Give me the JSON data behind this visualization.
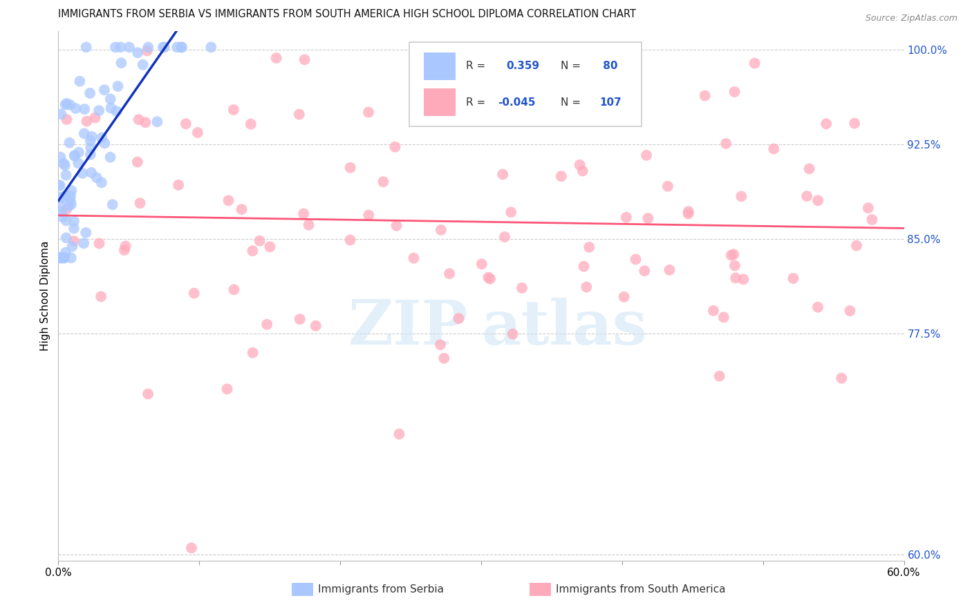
{
  "title": "IMMIGRANTS FROM SERBIA VS IMMIGRANTS FROM SOUTH AMERICA HIGH SCHOOL DIPLOMA CORRELATION CHART",
  "source": "Source: ZipAtlas.com",
  "ylabel": "High School Diploma",
  "ytick_labels": [
    "60.0%",
    "77.5%",
    "85.0%",
    "92.5%",
    "100.0%"
  ],
  "ytick_vals": [
    0.6,
    0.775,
    0.85,
    0.925,
    1.0
  ],
  "xtick_labels": [
    "0.0%",
    "",
    "",
    "",
    "",
    "",
    "60.0%"
  ],
  "xtick_vals": [
    0.0,
    0.1,
    0.2,
    0.3,
    0.4,
    0.5,
    0.6
  ],
  "x_min": 0.0,
  "x_max": 0.6,
  "y_min": 0.595,
  "y_max": 1.015,
  "serbia_r": 0.359,
  "serbia_n": 80,
  "sam_r": -0.045,
  "sam_n": 107,
  "serbia_color": "#aac8ff",
  "sam_color": "#ffaabb",
  "serbia_line_color": "#1133bb",
  "sam_line_color": "#ff5577",
  "grid_color": "#cccccc",
  "watermark_zip": "ZIP",
  "watermark_atlas": "atlas",
  "bottom_legend_serbia": "Immigrants from Serbia",
  "bottom_legend_sam": "Immigrants from South America",
  "legend_r1_val": "0.359",
  "legend_n1_val": " 80",
  "legend_r2_val": "-0.045",
  "legend_n2_val": "107",
  "legend_color": "#2255cc"
}
